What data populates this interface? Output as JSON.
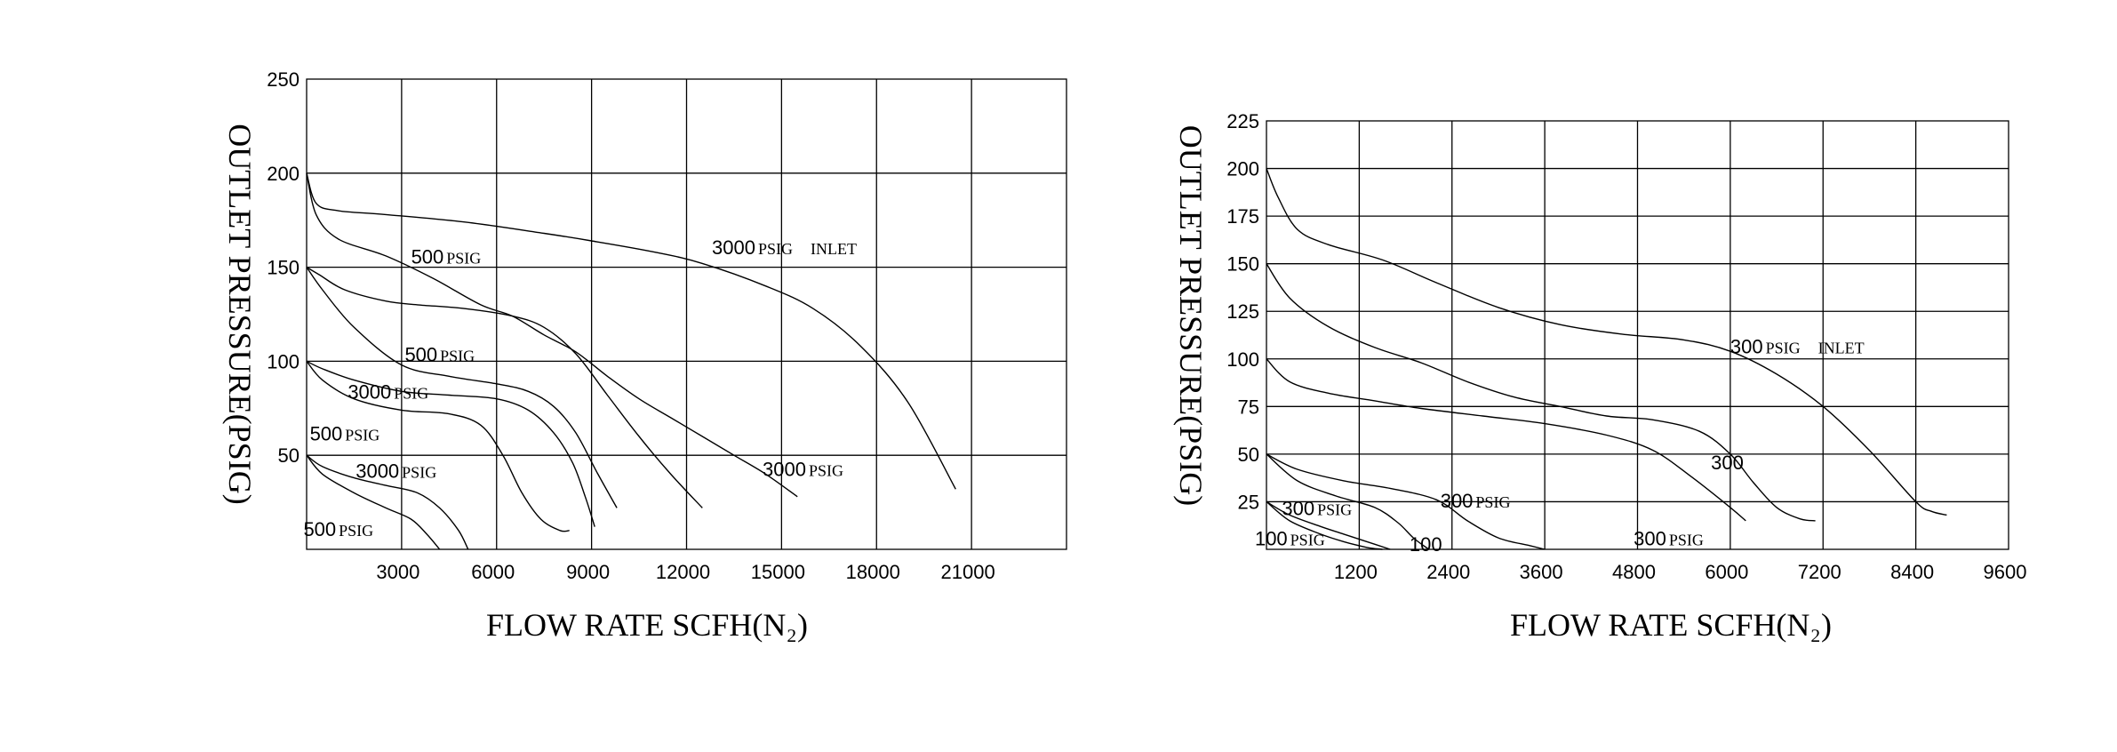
{
  "chart_data": [
    {
      "type": "line",
      "title": "",
      "xlabel": "FLOW RATE SCFH(N₂)",
      "ylabel": "OUTLET PRESSURE(PSIG)",
      "xlim": [
        0,
        24000
      ],
      "ylim": [
        0,
        250
      ],
      "xticks": [
        3000,
        6000,
        9000,
        12000,
        15000,
        18000,
        21000
      ],
      "yticks": [
        50,
        100,
        150,
        200,
        250
      ],
      "xtick_labels": [
        "3000",
        "6000",
        "9000",
        "12000",
        "15000",
        "18000",
        "21000"
      ],
      "ytick_labels": [
        "50",
        "100",
        "150",
        "200",
        "250"
      ],
      "grid": true,
      "series": [
        {
          "x": [
            0,
            300,
            1000,
            2500,
            5000,
            7500,
            9000,
            11000,
            12500,
            14500,
            16000,
            17500,
            19000,
            20500
          ],
          "y": [
            200,
            184,
            180,
            178,
            174,
            168,
            164,
            158,
            152,
            140,
            128,
            108,
            78,
            32
          ]
        },
        {
          "x": [
            0,
            300,
            1000,
            2500,
            4000,
            5500,
            6500,
            7500,
            8500,
            9500,
            10500,
            11500,
            12500,
            13500,
            14500,
            15500
          ],
          "y": [
            200,
            178,
            165,
            156,
            144,
            130,
            124,
            114,
            105,
            92,
            80,
            70,
            60,
            50,
            40,
            28
          ]
        },
        {
          "x": [
            0,
            400,
            1200,
            2500,
            3500,
            5000,
            6500,
            7500,
            8500,
            9500,
            10500,
            11500,
            12500
          ],
          "y": [
            150,
            146,
            138,
            132,
            130,
            128,
            124,
            118,
            104,
            82,
            60,
            40,
            22
          ]
        },
        {
          "x": [
            0,
            500,
            1500,
            3000,
            4500,
            6000,
            7000,
            7800,
            8500,
            9200,
            9800
          ],
          "y": [
            150,
            138,
            118,
            98,
            92,
            88,
            84,
            76,
            62,
            40,
            22
          ]
        },
        {
          "x": [
            0,
            500,
            1500,
            3000,
            4500,
            6000,
            7000,
            7800,
            8400,
            8800,
            9100
          ],
          "y": [
            100,
            96,
            90,
            84,
            82,
            80,
            74,
            62,
            46,
            28,
            12
          ]
        },
        {
          "x": [
            0,
            500,
            1500,
            3000,
            4500,
            5500,
            6200,
            6800,
            7400,
            8000,
            8300
          ],
          "y": [
            100,
            90,
            80,
            74,
            72,
            66,
            50,
            30,
            16,
            10,
            10
          ]
        },
        {
          "x": [
            0,
            500,
            1500,
            2500,
            3500,
            4200,
            4800,
            5100
          ],
          "y": [
            50,
            44,
            38,
            34,
            30,
            22,
            10,
            0
          ]
        },
        {
          "x": [
            0,
            500,
            1500,
            2500,
            3300,
            3800,
            4200
          ],
          "y": [
            50,
            40,
            30,
            22,
            16,
            8,
            0
          ]
        }
      ],
      "annotations": [
        {
          "num": "3000",
          "unit": "PSIG",
          "extra": "INLET",
          "x": 12800,
          "y": 157
        },
        {
          "num": "500",
          "unit": "PSIG",
          "x": 3300,
          "y": 152
        },
        {
          "num": "500",
          "unit": "PSIG",
          "x": 3100,
          "y": 100
        },
        {
          "num": "3000",
          "unit": "PSIG",
          "x": 1300,
          "y": 80
        },
        {
          "num": "500",
          "unit": "PSIG",
          "x": 100,
          "y": 58
        },
        {
          "num": "3000",
          "unit": "PSIG",
          "x": 1550,
          "y": 38
        },
        {
          "num": "3000",
          "unit": "PSIG",
          "x": 14400,
          "y": 39
        },
        {
          "num": "500",
          "unit": "PSIG",
          "x": -100,
          "y": 7
        }
      ]
    },
    {
      "type": "line",
      "title": "",
      "xlabel": "FLOW RATE SCFH(N₂)",
      "ylabel": "OUTLET PRESSURE(PSIG)",
      "xlim": [
        0,
        9600
      ],
      "ylim": [
        0,
        225
      ],
      "xticks": [
        1200,
        2400,
        3600,
        4800,
        6000,
        7200,
        8400,
        9600
      ],
      "yticks": [
        25,
        50,
        75,
        100,
        125,
        150,
        175,
        200,
        225
      ],
      "xtick_labels": [
        "1200",
        "2400",
        "3600",
        "4800",
        "6000",
        "7200",
        "8400",
        "9600"
      ],
      "ytick_labels": [
        "25",
        "50",
        "75",
        "100",
        "125",
        "150",
        "175",
        "200",
        "225"
      ],
      "grid": true,
      "series": [
        {
          "x": [
            0,
            150,
            400,
            800,
            1500,
            2200,
            3000,
            3800,
            4600,
            5400,
            6000,
            6600,
            7200,
            7800,
            8400,
            8600,
            8800
          ],
          "y": [
            200,
            185,
            168,
            160,
            152,
            140,
            127,
            118,
            113,
            110,
            104,
            92,
            75,
            52,
            25,
            20,
            18
          ]
        },
        {
          "x": [
            0,
            300,
            800,
            1400,
            2000,
            2600,
            3200,
            3800,
            4400,
            5000,
            5600,
            6000,
            6300,
            6600,
            6900,
            7100
          ],
          "y": [
            150,
            132,
            117,
            106,
            98,
            88,
            80,
            75,
            70,
            68,
            62,
            50,
            35,
            22,
            16,
            15
          ]
        },
        {
          "x": [
            0,
            300,
            800,
            1400,
            2000,
            2800,
            3600,
            4400,
            5000,
            5500,
            6000,
            6200
          ],
          "y": [
            100,
            88,
            82,
            78,
            74,
            70,
            66,
            60,
            52,
            38,
            22,
            15
          ]
        },
        {
          "x": [
            0,
            400,
            1000,
            1600,
            2200,
            2600,
            3000,
            3400,
            3600
          ],
          "y": [
            50,
            42,
            36,
            32,
            26,
            15,
            6,
            2,
            0
          ]
        },
        {
          "x": [
            0,
            400,
            900,
            1400,
            1700,
            1900,
            2100
          ],
          "y": [
            50,
            36,
            28,
            22,
            14,
            6,
            0
          ]
        },
        {
          "x": [
            0,
            300,
            700,
            1000,
            1300,
            1600
          ],
          "y": [
            25,
            18,
            12,
            8,
            4,
            0
          ]
        },
        {
          "x": [
            0,
            300,
            700,
            1000,
            1300,
            1500
          ],
          "y": [
            25,
            15,
            8,
            4,
            1,
            0
          ]
        }
      ],
      "annotations": [
        {
          "num": "300",
          "unit": "PSIG",
          "extra": "INLET",
          "x": 6000,
          "y": 103
        },
        {
          "num": "300",
          "unit": "",
          "x": 5750,
          "y": 42
        },
        {
          "num": "300",
          "unit": "PSIG",
          "x": 2250,
          "y": 22
        },
        {
          "num": "300",
          "unit": "PSIG",
          "x": 200,
          "y": 18
        },
        {
          "num": "100",
          "unit": "PSIG",
          "x": -150,
          "y": 2
        },
        {
          "num": "100",
          "unit": "",
          "x": 1850,
          "y": -1
        },
        {
          "num": "300",
          "unit": "PSIG",
          "x": 4750,
          "y": 2
        }
      ]
    }
  ]
}
